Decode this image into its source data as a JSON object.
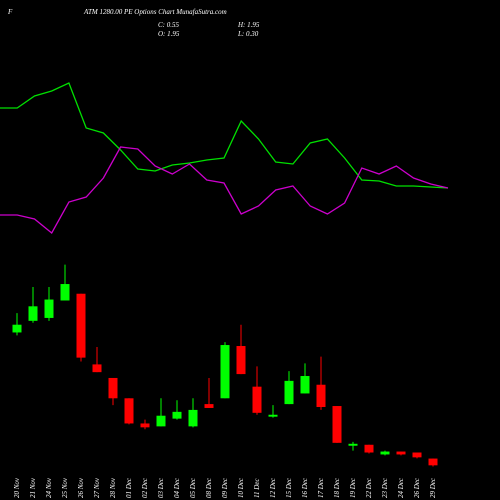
{
  "chart_data": {
    "type": "candlestick",
    "symbol": "F",
    "title": "ATM 1280.00 PE Options Chart MunafaSutra.com",
    "stats": [
      "C: 0.55",
      "H: 1.95",
      "O: 1.95",
      "L: 0.30"
    ],
    "categories": [
      "20 Nov",
      "21 Nov",
      "24 Nov",
      "25 Nov",
      "26 Nov",
      "27 Nov",
      "28 Nov",
      "01 Dec",
      "02 Dec",
      "03 Dec",
      "04 Dec",
      "05 Dec",
      "08 Dec",
      "09 Dec",
      "10 Dec",
      "11 Dec",
      "12 Dec",
      "15 Dec",
      "16 Dec",
      "17 Dec",
      "18 Dec",
      "19 Dec",
      "22 Dec",
      "23 Dec",
      "24 Dec",
      "26 Dec",
      "29 Dec"
    ],
    "open": [
      28,
      30.4,
      31,
      34.6,
      36,
      21.4,
      18.6,
      14.4,
      9.2,
      8.6,
      10.2,
      8.6,
      13.2,
      14.4,
      25.2,
      16.8,
      10.6,
      13.2,
      15.4,
      17.2,
      12.8,
      4.6,
      4.8,
      2.8,
      3.4,
      3.2,
      1.95
    ],
    "high": [
      32,
      37.4,
      37.4,
      42,
      36,
      25,
      18.6,
      14.4,
      10,
      14.4,
      14,
      14.4,
      18.6,
      26,
      29.6,
      21,
      13,
      20,
      21.6,
      23,
      12.8,
      5.4,
      4.8,
      3.6,
      3.4,
      3.2,
      1.95
    ],
    "low": [
      27.4,
      30,
      30.4,
      34.6,
      22,
      19.8,
      13,
      9,
      8,
      8.6,
      10,
      8.4,
      12.4,
      14.4,
      19.4,
      11,
      10.4,
      13.2,
      15.4,
      12,
      5.2,
      3.6,
      3,
      2.6,
      2.6,
      2,
      0.3
    ],
    "close": [
      29.6,
      33.4,
      34.8,
      38,
      22.8,
      19.8,
      14.4,
      9.2,
      8.4,
      10.8,
      11.6,
      12,
      12.4,
      25.4,
      19.4,
      11.4,
      11,
      18,
      19,
      12.6,
      5.2,
      5,
      3.2,
      3.4,
      2.8,
      2.2,
      0.55
    ],
    "up_color": "#00ff00",
    "down_color": "#ff0000",
    "ylim": [
      0,
      44
    ],
    "lines": [
      {
        "color": "#00e000",
        "values": [
          152,
          152,
          164,
          169,
          177,
          132,
          127,
          110,
          91,
          89,
          95,
          97,
          100,
          102,
          139,
          121,
          98,
          96,
          117,
          121,
          102,
          80,
          79,
          74,
          74,
          73,
          72
        ]
      },
      {
        "color": "#cc00cc",
        "values": [
          45,
          45,
          41,
          27,
          58,
          63,
          82,
          113,
          111,
          94,
          86,
          96,
          80,
          77,
          46,
          54,
          70,
          74,
          54,
          46,
          57,
          92,
          86,
          94,
          82,
          76,
          72
        ]
      }
    ],
    "lines_ylim": [
      0,
      200
    ]
  }
}
